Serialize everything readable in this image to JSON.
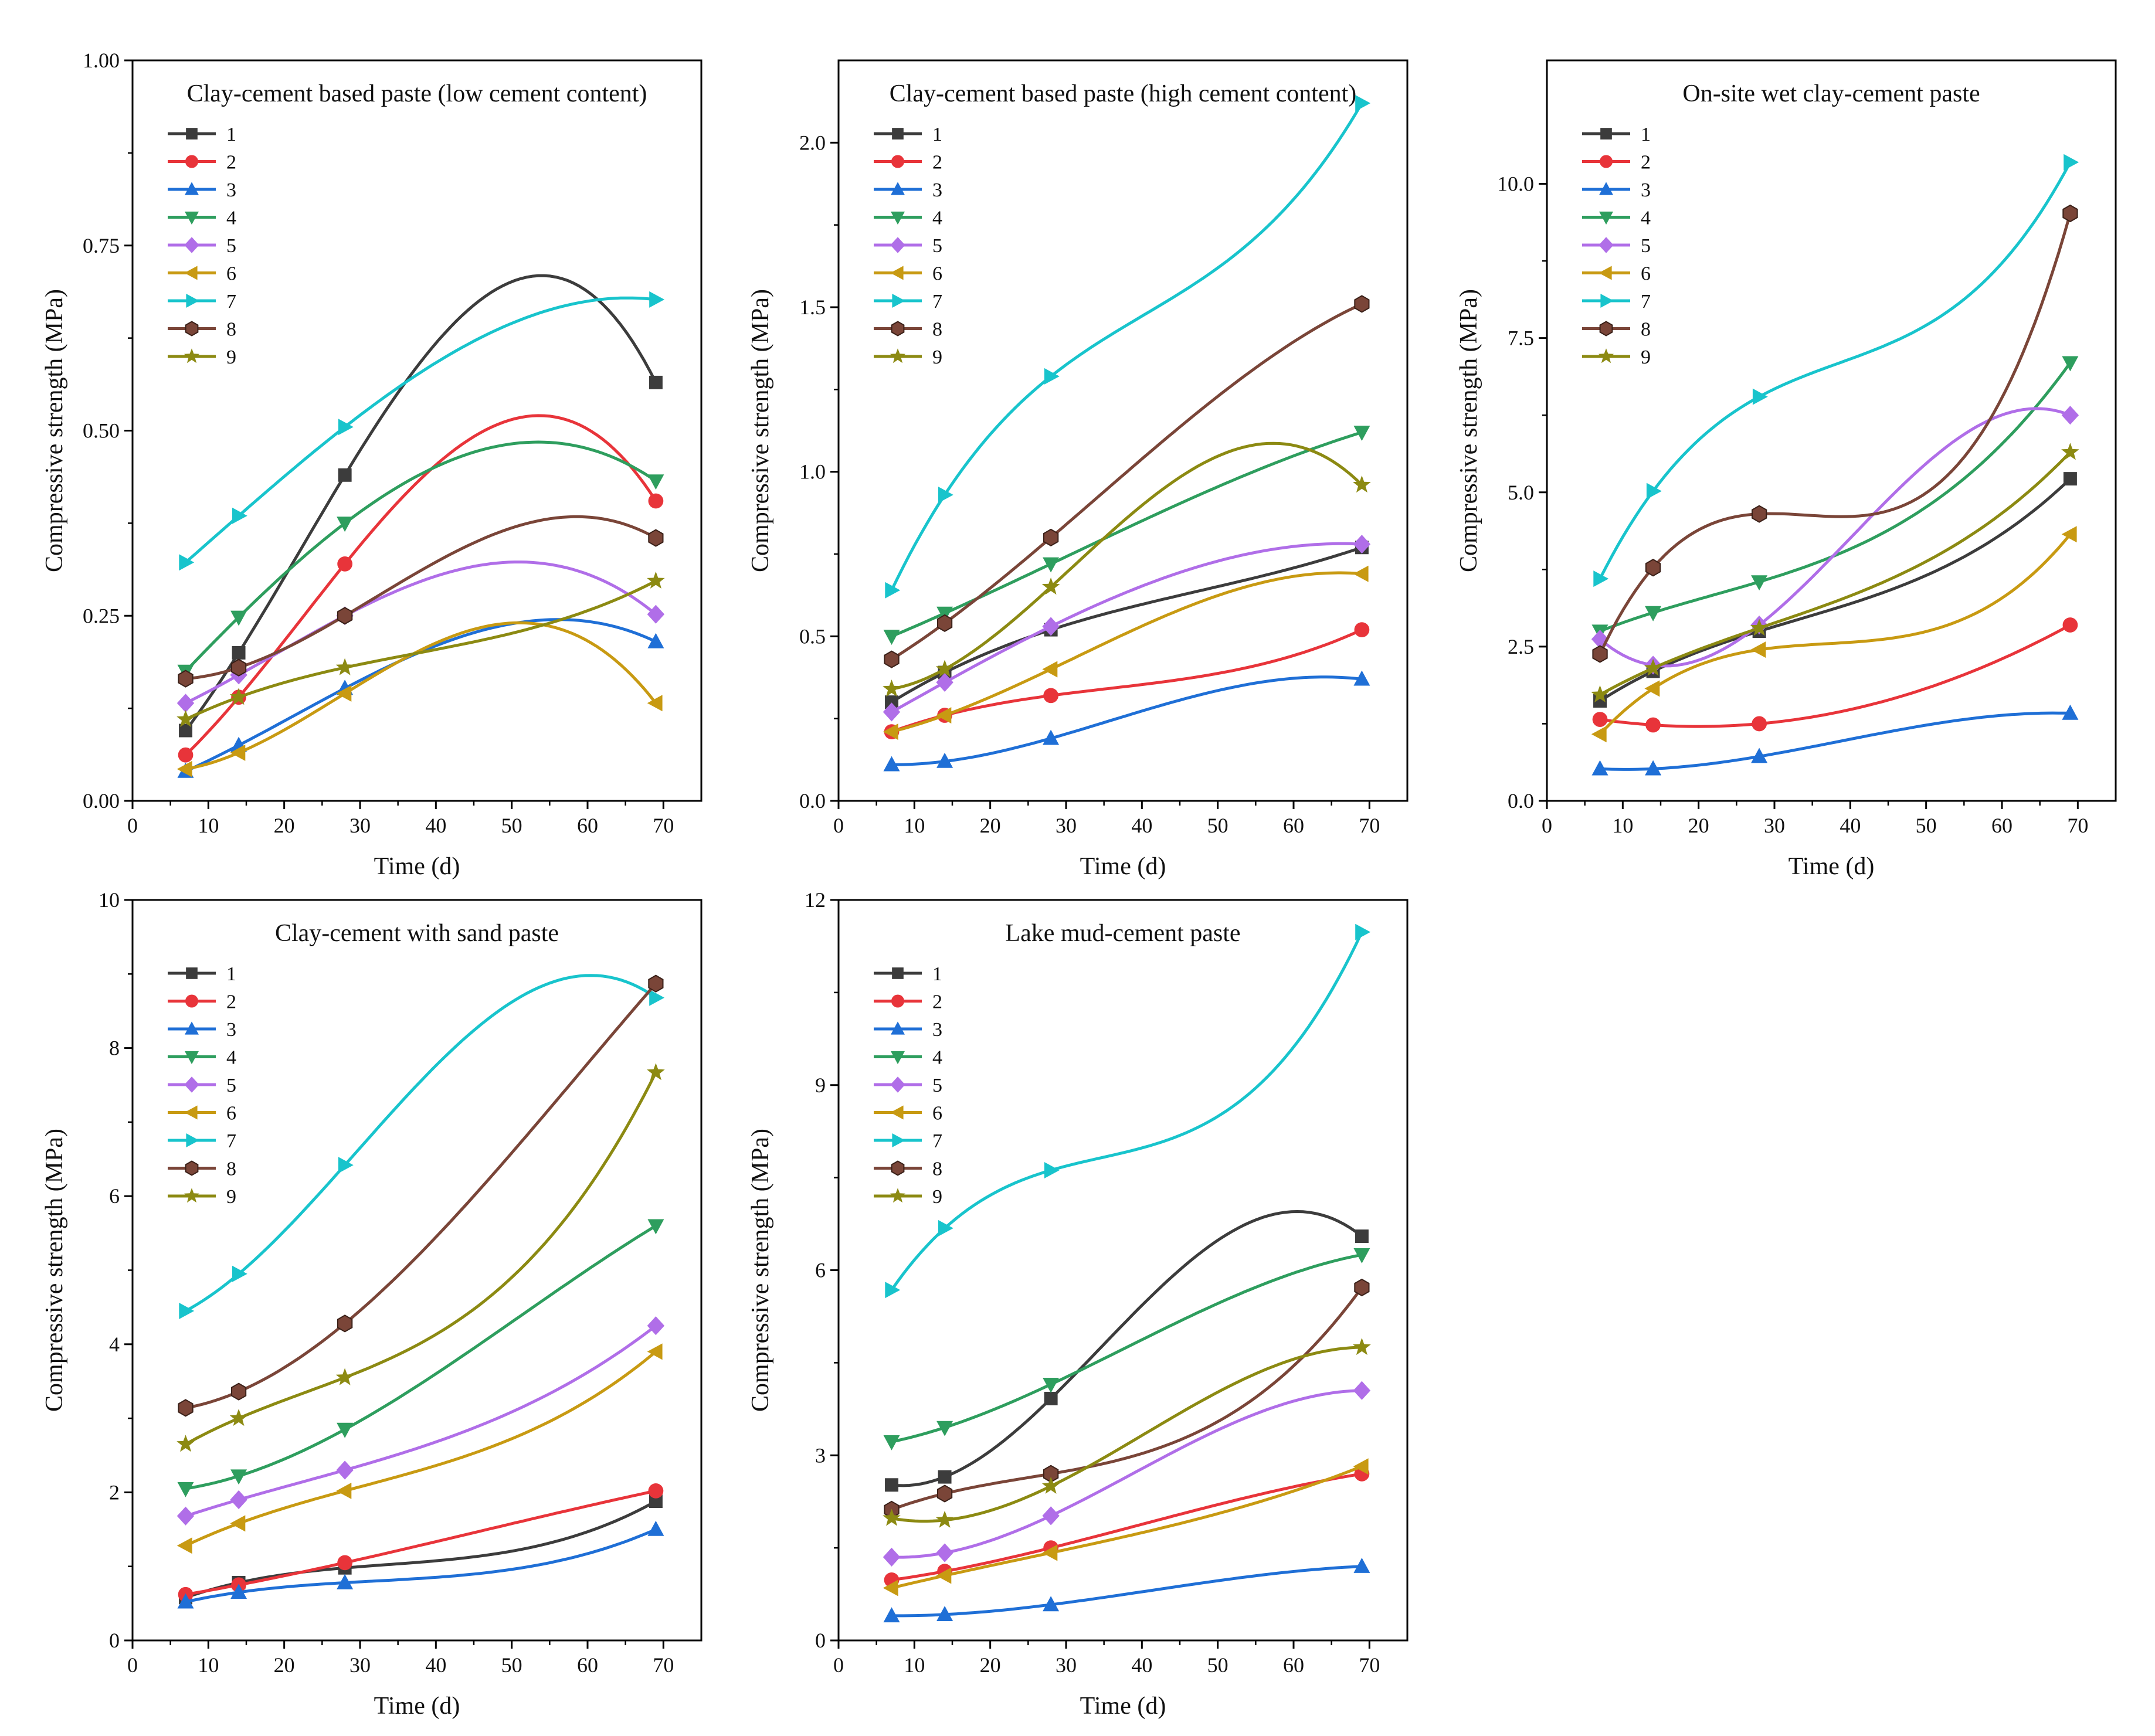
{
  "chart_data": [
    {
      "type": "scatter",
      "title": "Clay-cement based paste (low cement content)",
      "xlabel": "Time (d)",
      "ylabel": "Compressive strength (MPa)",
      "xlim": [
        0,
        75
      ],
      "ylim": [
        0,
        1.0
      ],
      "xticks": [
        "0",
        "10",
        "20",
        "30",
        "40",
        "50",
        "60",
        "70"
      ],
      "yticks": [
        "0.00",
        "0.25",
        "0.50",
        "0.75",
        "1.00"
      ],
      "x": [
        7,
        14,
        28,
        69
      ],
      "legend_position": "top-left",
      "series": [
        {
          "name": "1",
          "values": [
            0.095,
            0.2,
            0.44,
            0.565
          ]
        },
        {
          "name": "2",
          "values": [
            0.062,
            0.14,
            0.32,
            0.405
          ]
        },
        {
          "name": "3",
          "values": [
            0.04,
            0.075,
            0.152,
            0.215
          ]
        },
        {
          "name": "4",
          "values": [
            0.175,
            0.248,
            0.375,
            0.432
          ]
        },
        {
          "name": "5",
          "values": [
            0.132,
            0.17,
            0.25,
            0.252
          ]
        },
        {
          "name": "6",
          "values": [
            0.043,
            0.065,
            0.145,
            0.132
          ]
        },
        {
          "name": "7",
          "values": [
            0.322,
            0.385,
            0.505,
            0.677
          ]
        },
        {
          "name": "8",
          "values": [
            0.165,
            0.18,
            0.25,
            0.355
          ]
        },
        {
          "name": "9",
          "values": [
            0.11,
            0.14,
            0.18,
            0.297
          ]
        }
      ]
    },
    {
      "type": "scatter",
      "title": "Clay-cement based paste (high cement content)",
      "xlabel": "Time (d)",
      "ylabel": "Compressive strength (MPa)",
      "xlim": [
        0,
        75
      ],
      "ylim": [
        0,
        2.25
      ],
      "xticks": [
        "0",
        "10",
        "20",
        "30",
        "40",
        "50",
        "60",
        "70"
      ],
      "yticks": [
        "0.0",
        "0.5",
        "1.0",
        "1.5",
        "2.0"
      ],
      "x": [
        7,
        14,
        28,
        69
      ],
      "legend_position": "top-left",
      "series": [
        {
          "name": "1",
          "values": [
            0.3,
            0.39,
            0.52,
            0.77
          ]
        },
        {
          "name": "2",
          "values": [
            0.21,
            0.26,
            0.32,
            0.52
          ]
        },
        {
          "name": "3",
          "values": [
            0.11,
            0.12,
            0.19,
            0.37
          ]
        },
        {
          "name": "4",
          "values": [
            0.5,
            0.57,
            0.72,
            1.12
          ]
        },
        {
          "name": "5",
          "values": [
            0.27,
            0.36,
            0.53,
            0.78
          ]
        },
        {
          "name": "6",
          "values": [
            0.21,
            0.26,
            0.4,
            0.69
          ]
        },
        {
          "name": "7",
          "values": [
            0.64,
            0.93,
            1.29,
            2.12
          ]
        },
        {
          "name": "8",
          "values": [
            0.43,
            0.54,
            0.8,
            1.51
          ]
        },
        {
          "name": "9",
          "values": [
            0.34,
            0.4,
            0.65,
            0.96
          ]
        }
      ]
    },
    {
      "type": "scatter",
      "title": "On-site wet clay-cement paste",
      "xlabel": "Time (d)",
      "ylabel": "Compressive strength (MPa)",
      "xlim": [
        0,
        75
      ],
      "ylim": [
        0,
        12.0
      ],
      "xticks": [
        "0",
        "10",
        "20",
        "30",
        "40",
        "50",
        "60",
        "70"
      ],
      "yticks": [
        "0.0",
        "2.5",
        "5.0",
        "7.5",
        "10.0"
      ],
      "x": [
        7,
        14,
        28,
        69
      ],
      "legend_position": "top-left",
      "series": [
        {
          "name": "1",
          "values": [
            1.62,
            2.1,
            2.75,
            5.22
          ]
        },
        {
          "name": "2",
          "values": [
            1.32,
            1.23,
            1.25,
            2.85
          ]
        },
        {
          "name": "3",
          "values": [
            0.52,
            0.52,
            0.72,
            1.42
          ]
        },
        {
          "name": "4",
          "values": [
            2.75,
            3.05,
            3.55,
            7.1
          ]
        },
        {
          "name": "5",
          "values": [
            2.62,
            2.2,
            2.85,
            6.25
          ]
        },
        {
          "name": "6",
          "values": [
            1.08,
            1.82,
            2.45,
            4.32
          ]
        },
        {
          "name": "7",
          "values": [
            3.6,
            5.02,
            6.55,
            10.35
          ]
        },
        {
          "name": "8",
          "values": [
            2.38,
            3.78,
            4.65,
            9.52
          ]
        },
        {
          "name": "9",
          "values": [
            1.72,
            2.15,
            2.8,
            5.65
          ]
        }
      ]
    },
    {
      "type": "scatter",
      "title": "Clay-cement with sand paste",
      "xlabel": "Time (d)",
      "ylabel": "Compressive strength (MPa)",
      "xlim": [
        0,
        75
      ],
      "ylim": [
        0,
        10
      ],
      "xticks": [
        "0",
        "10",
        "20",
        "30",
        "40",
        "50",
        "60",
        "70"
      ],
      "yticks": [
        "0",
        "2",
        "4",
        "6",
        "8",
        "10"
      ],
      "x": [
        7,
        14,
        28,
        69
      ],
      "legend_position": "top-left",
      "series": [
        {
          "name": "1",
          "values": [
            0.58,
            0.78,
            0.98,
            1.88
          ]
        },
        {
          "name": "2",
          "values": [
            0.62,
            0.75,
            1.05,
            2.02
          ]
        },
        {
          "name": "3",
          "values": [
            0.52,
            0.65,
            0.78,
            1.5
          ]
        },
        {
          "name": "4",
          "values": [
            2.05,
            2.22,
            2.85,
            5.6
          ]
        },
        {
          "name": "5",
          "values": [
            1.68,
            1.9,
            2.3,
            4.25
          ]
        },
        {
          "name": "6",
          "values": [
            1.28,
            1.58,
            2.02,
            3.9
          ]
        },
        {
          "name": "7",
          "values": [
            4.45,
            4.95,
            6.42,
            8.68
          ]
        },
        {
          "name": "8",
          "values": [
            3.14,
            3.36,
            4.28,
            8.87
          ]
        },
        {
          "name": "9",
          "values": [
            2.65,
            3.0,
            3.55,
            7.67
          ]
        }
      ]
    },
    {
      "type": "scatter",
      "title": "Lake mud-cement paste",
      "xlabel": "Time (d)",
      "ylabel": "Compressive strength (MPa)",
      "xlim": [
        0,
        75
      ],
      "ylim": [
        0,
        12
      ],
      "xticks": [
        "0",
        "10",
        "20",
        "30",
        "40",
        "50",
        "60",
        "70"
      ],
      "yticks": [
        "0",
        "3",
        "6",
        "9",
        "12"
      ],
      "x": [
        7,
        14,
        28,
        69
      ],
      "legend_position": "top-left",
      "series": [
        {
          "name": "1",
          "values": [
            2.52,
            2.65,
            3.92,
            6.55
          ]
        },
        {
          "name": "2",
          "values": [
            0.98,
            1.12,
            1.5,
            2.7
          ]
        },
        {
          "name": "3",
          "values": [
            0.4,
            0.42,
            0.58,
            1.2
          ]
        },
        {
          "name": "4",
          "values": [
            3.22,
            3.45,
            4.15,
            6.25
          ]
        },
        {
          "name": "5",
          "values": [
            1.35,
            1.42,
            2.02,
            4.05
          ]
        },
        {
          "name": "6",
          "values": [
            0.85,
            1.05,
            1.42,
            2.82
          ]
        },
        {
          "name": "7",
          "values": [
            5.68,
            6.68,
            7.62,
            11.48
          ]
        },
        {
          "name": "8",
          "values": [
            2.12,
            2.38,
            2.7,
            5.72
          ]
        },
        {
          "name": "9",
          "values": [
            1.98,
            1.95,
            2.5,
            4.75
          ]
        }
      ]
    }
  ],
  "style": {
    "series_colors": [
      "#3c3c3c",
      "#e8343a",
      "#1f6fd6",
      "#2e9e5e",
      "#b06ee8",
      "#c89a12",
      "#18c4cc",
      "#7a4538",
      "#8c8a12"
    ],
    "series_markers": [
      "square",
      "circle",
      "triangle-up",
      "triangle-down",
      "diamond",
      "triangle-left",
      "triangle-right",
      "hexagon",
      "star"
    ]
  }
}
